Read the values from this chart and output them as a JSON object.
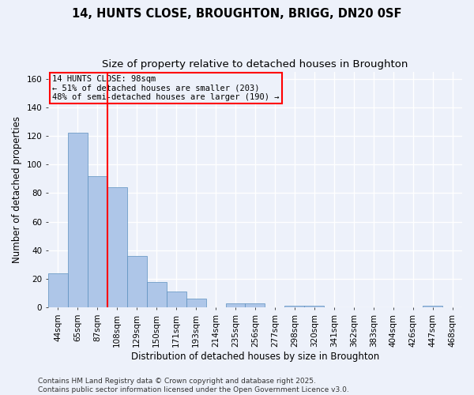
{
  "title_line1": "14, HUNTS CLOSE, BROUGHTON, BRIGG, DN20 0SF",
  "title_line2": "Size of property relative to detached houses in Broughton",
  "xlabel": "Distribution of detached houses by size in Broughton",
  "ylabel": "Number of detached properties",
  "categories": [
    "44sqm",
    "65sqm",
    "87sqm",
    "108sqm",
    "129sqm",
    "150sqm",
    "171sqm",
    "193sqm",
    "214sqm",
    "235sqm",
    "256sqm",
    "277sqm",
    "298sqm",
    "320sqm",
    "341sqm",
    "362sqm",
    "383sqm",
    "404sqm",
    "426sqm",
    "447sqm",
    "468sqm"
  ],
  "values": [
    24,
    122,
    92,
    84,
    36,
    18,
    11,
    6,
    0,
    3,
    3,
    0,
    1,
    1,
    0,
    0,
    0,
    0,
    0,
    1,
    0
  ],
  "bar_color": "#aec6e8",
  "bar_edge_color": "#5b8fbe",
  "vline_x_idx": 2,
  "vline_color": "red",
  "annotation_text": "14 HUNTS CLOSE: 98sqm\n← 51% of detached houses are smaller (203)\n48% of semi-detached houses are larger (190) →",
  "annotation_box_color": "red",
  "annotation_text_color": "black",
  "ylim": [
    0,
    165
  ],
  "yticks": [
    0,
    20,
    40,
    60,
    80,
    100,
    120,
    140,
    160
  ],
  "footer1": "Contains HM Land Registry data © Crown copyright and database right 2025.",
  "footer2": "Contains public sector information licensed under the Open Government Licence v3.0.",
  "bg_color": "#edf1fa",
  "grid_color": "white",
  "title_fontsize": 10.5,
  "subtitle_fontsize": 9.5,
  "axis_label_fontsize": 8.5,
  "tick_fontsize": 7.5,
  "footer_fontsize": 6.5,
  "annotation_fontsize": 7.5
}
